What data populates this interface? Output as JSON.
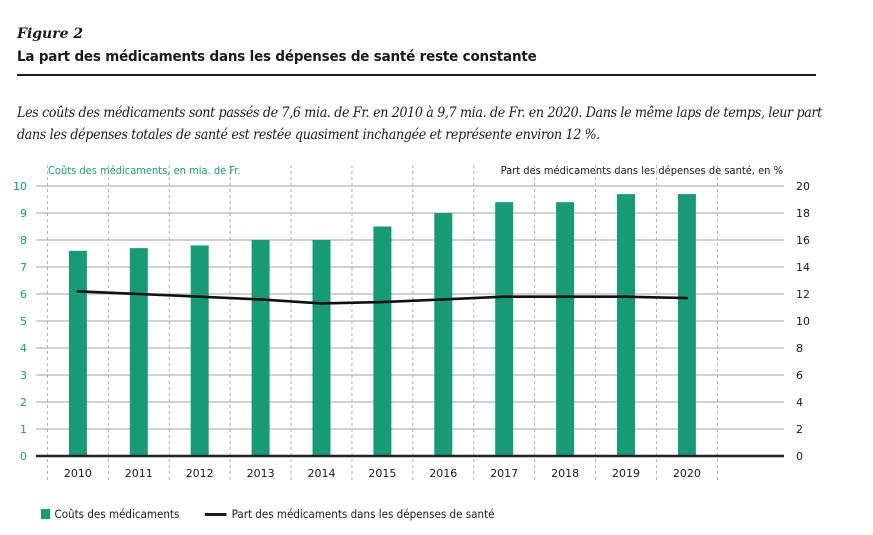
{
  "figure": {
    "label": "Figure 2",
    "title": "La part des médicaments dans les dépenses de santé reste constante",
    "lede_line1": "Les coûts des médicaments sont passés de 7,6 mia. de Fr. en 2010 à 9,7 mia. de Fr. en 2020. Dans le même laps de temps, leur part",
    "lede_line2": "dans les dépenses totales de santé est restée quasiment inchangée et représente environ 12 %."
  },
  "colors": {
    "bar": "#179b77",
    "axis_left_text": "#179b77",
    "line": "#111111",
    "grid": "#b8b8b8",
    "text": "#1a1a1a"
  },
  "legend": {
    "bar_label": "Coûts des médicaments",
    "line_label": "Part des médicaments dans les dépenses de santé"
  },
  "chart_data": {
    "type": "bar",
    "title": "La part des médicaments dans les dépenses de santé reste constante",
    "categories": [
      "2010",
      "2011",
      "2012",
      "2013",
      "2014",
      "2015",
      "2016",
      "2017",
      "2018",
      "2019",
      "2020"
    ],
    "series": [
      {
        "name": "Coûts des médicaments",
        "type": "bar",
        "axis": "left",
        "values": [
          7.6,
          7.7,
          7.8,
          8.0,
          8.0,
          8.5,
          9.0,
          9.4,
          9.4,
          9.7,
          9.7
        ]
      },
      {
        "name": "Part des médicaments dans les dépenses de santé",
        "type": "line",
        "axis": "right",
        "values": [
          12.2,
          12.0,
          11.8,
          11.6,
          11.3,
          11.4,
          11.6,
          11.8,
          11.8,
          11.8,
          11.7
        ]
      }
    ],
    "ylabel_left": "Coûts des médicaments, en mia. de Fr.",
    "ylabel_right": "Part des médicaments dans les dépenses de santé, en %",
    "ylim_left": [
      0,
      10
    ],
    "ylim_right": [
      0,
      20
    ],
    "yticks_left": [
      "0",
      "1",
      "2",
      "3",
      "4",
      "5",
      "6",
      "7",
      "8",
      "9",
      "10"
    ],
    "yticks_right": [
      "0",
      "2",
      "4",
      "6",
      "8",
      "10",
      "12",
      "14",
      "16",
      "18",
      "20"
    ],
    "grid": true,
    "legend_position": "bottom-left"
  }
}
